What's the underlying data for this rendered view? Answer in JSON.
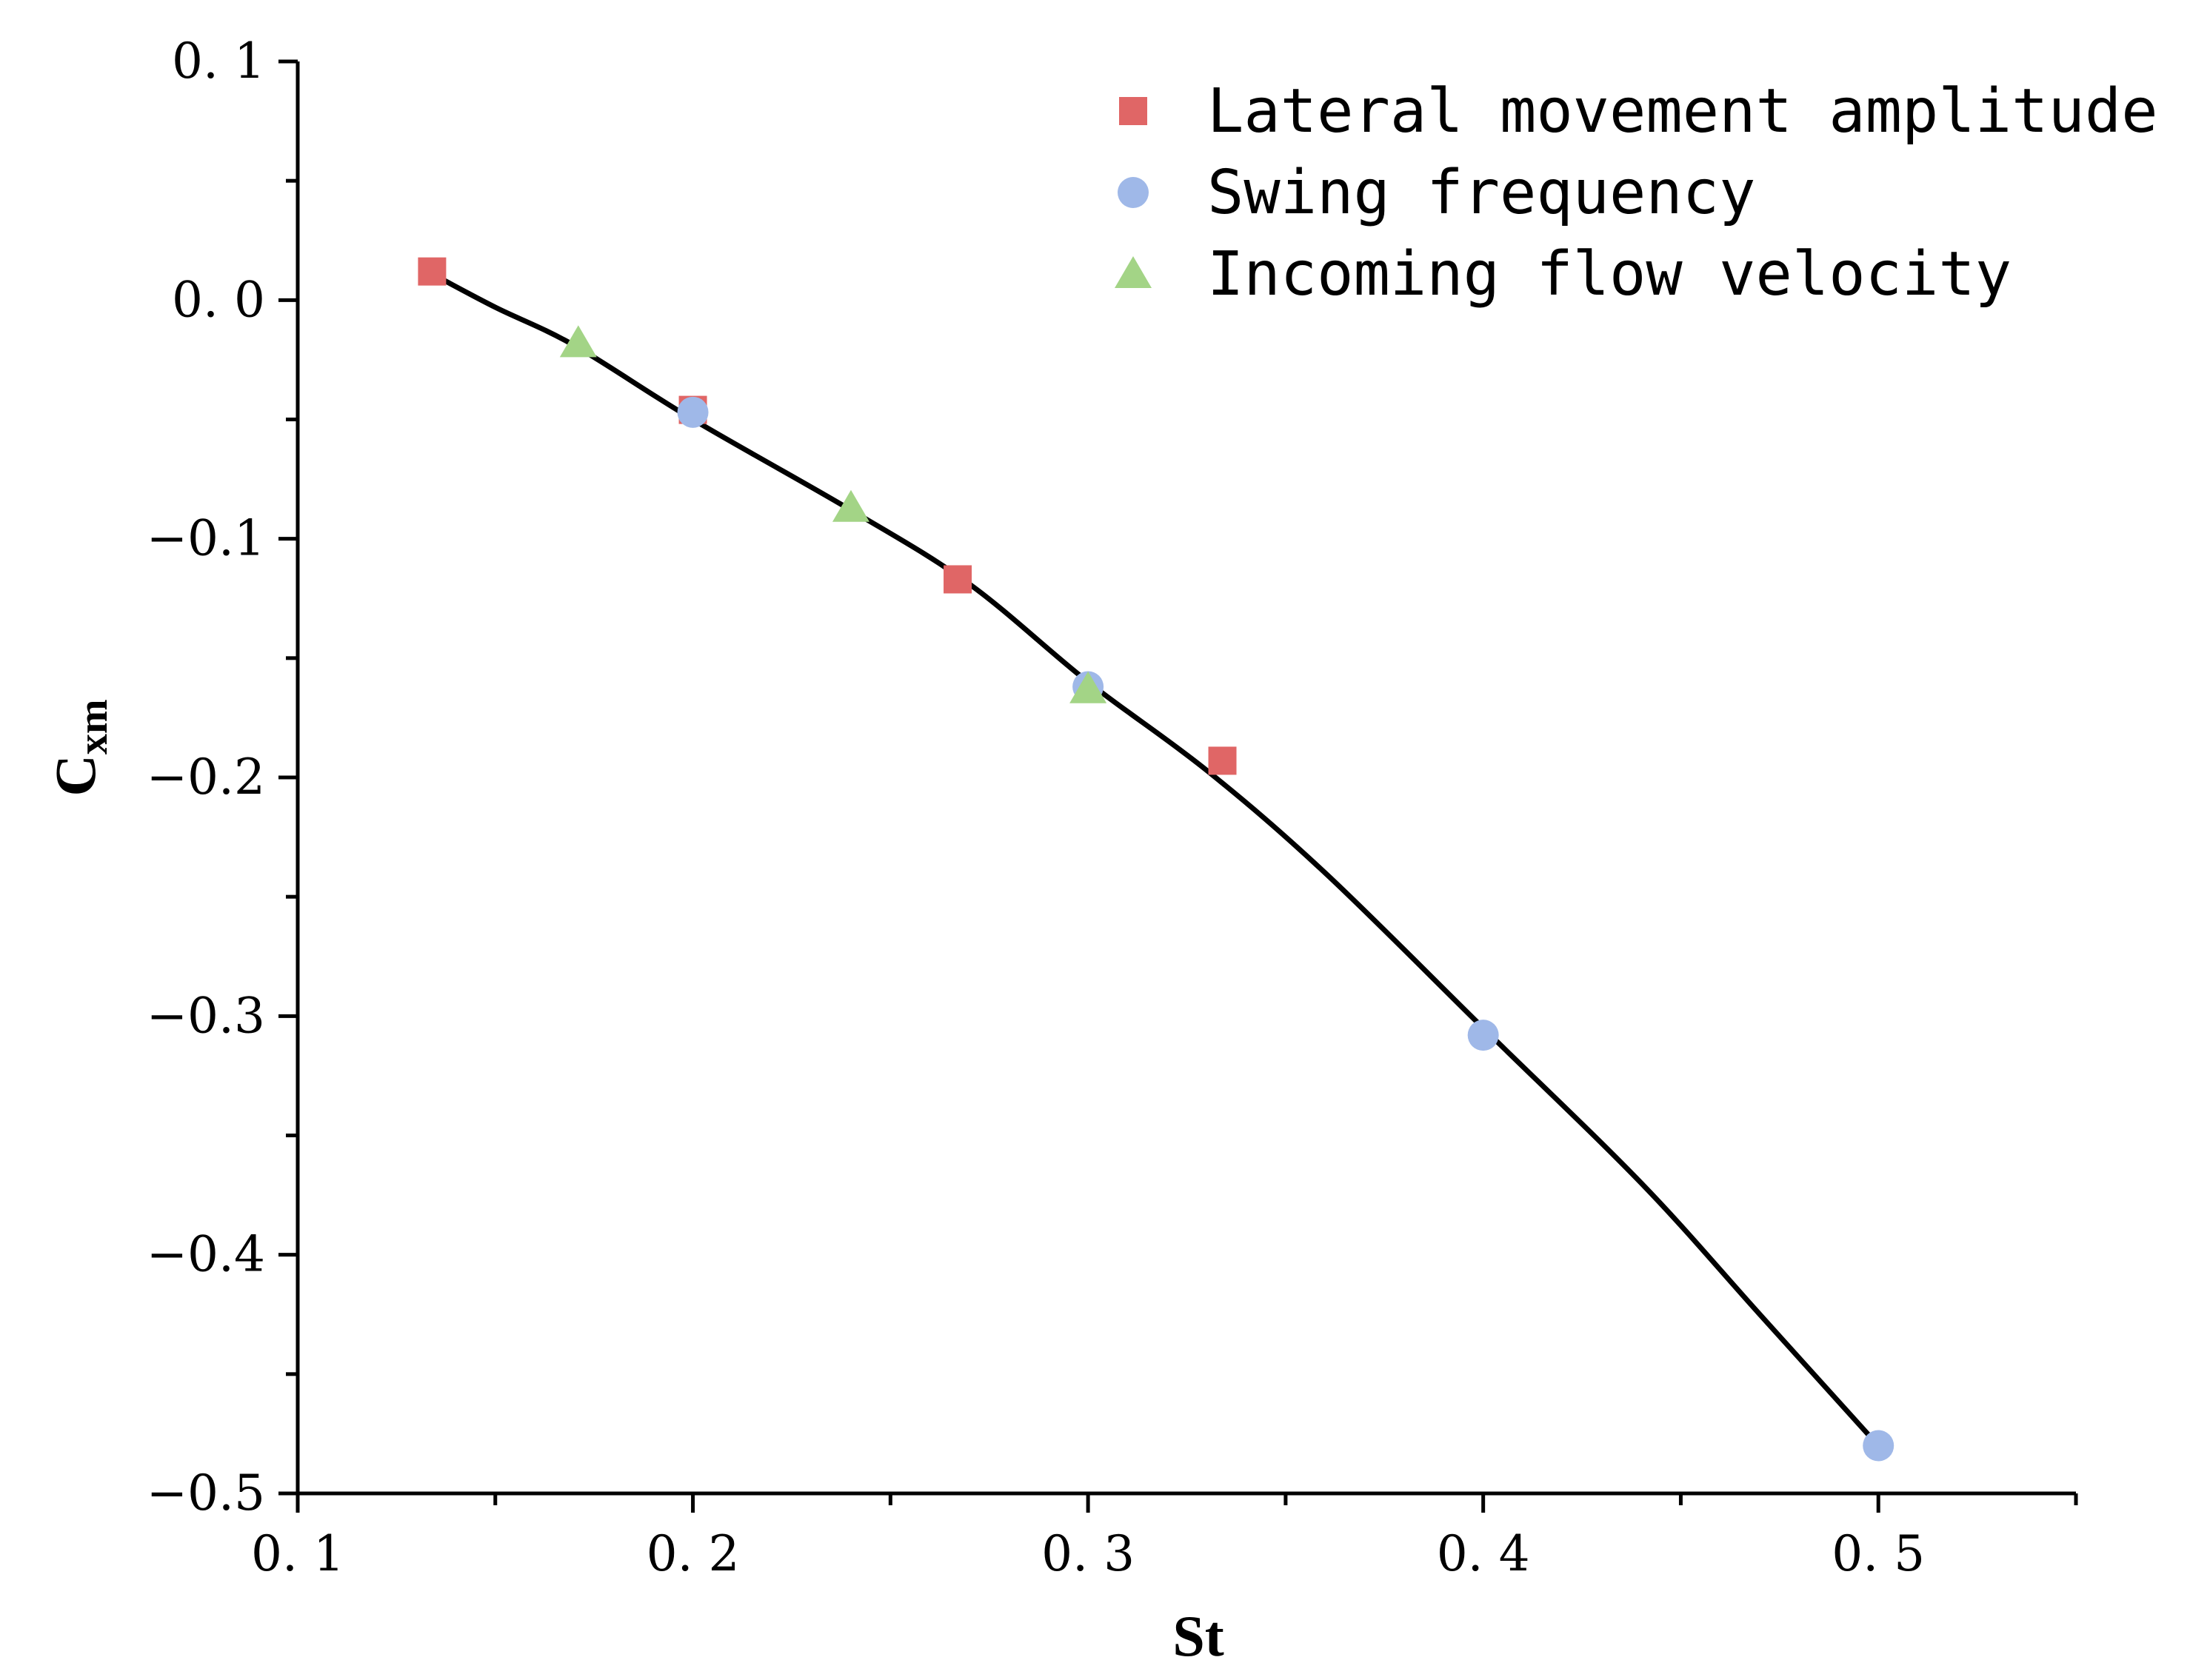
{
  "chart_data": {
    "type": "scatter",
    "xlabel": "St",
    "ylabel": {
      "main": "C",
      "sub": "xm"
    },
    "xlim": [
      0.1,
      0.55
    ],
    "ylim": [
      -0.5,
      0.1
    ],
    "xticks": [
      0.1,
      0.2,
      0.3,
      0.4,
      0.5
    ],
    "xtick_labels": [
      "0. 1",
      "0. 2",
      "0. 3",
      "0. 4",
      "0. 5"
    ],
    "yticks": [
      0.1,
      0.0,
      -0.1,
      -0.2,
      -0.3,
      -0.4,
      -0.5
    ],
    "ytick_labels": [
      "0. 1",
      "0. 0",
      "−0.1",
      "−0.2",
      "−0.3",
      "−0.4",
      "−0.5"
    ],
    "grid": false,
    "legend_position": "top-right",
    "series": [
      {
        "name": "Lateral movement amplitude",
        "marker": "square",
        "color": "#e06666",
        "points": [
          [
            0.134,
            0.012
          ],
          [
            0.2,
            -0.046
          ],
          [
            0.267,
            -0.117
          ],
          [
            0.334,
            -0.193
          ]
        ]
      },
      {
        "name": "Swing frequency",
        "marker": "circle",
        "color": "#9fb8e8",
        "points": [
          [
            0.2,
            -0.047
          ],
          [
            0.3,
            -0.162
          ],
          [
            0.4,
            -0.308
          ],
          [
            0.5,
            -0.48
          ]
        ]
      },
      {
        "name": "Incoming flow velocity",
        "marker": "triangle",
        "color": "#a3d486",
        "points": [
          [
            0.171,
            -0.018
          ],
          [
            0.24,
            -0.087
          ],
          [
            0.3,
            -0.163
          ]
        ]
      }
    ],
    "fit_curve": {
      "color": "#000000",
      "points": [
        [
          0.134,
          0.011
        ],
        [
          0.15,
          -0.003
        ],
        [
          0.17,
          -0.019
        ],
        [
          0.2,
          -0.05
        ],
        [
          0.24,
          -0.088
        ],
        [
          0.27,
          -0.119
        ],
        [
          0.3,
          -0.16
        ],
        [
          0.33,
          -0.197
        ],
        [
          0.36,
          -0.24
        ],
        [
          0.4,
          -0.305
        ],
        [
          0.44,
          -0.37
        ],
        [
          0.47,
          -0.425
        ],
        [
          0.5,
          -0.48
        ]
      ]
    }
  }
}
